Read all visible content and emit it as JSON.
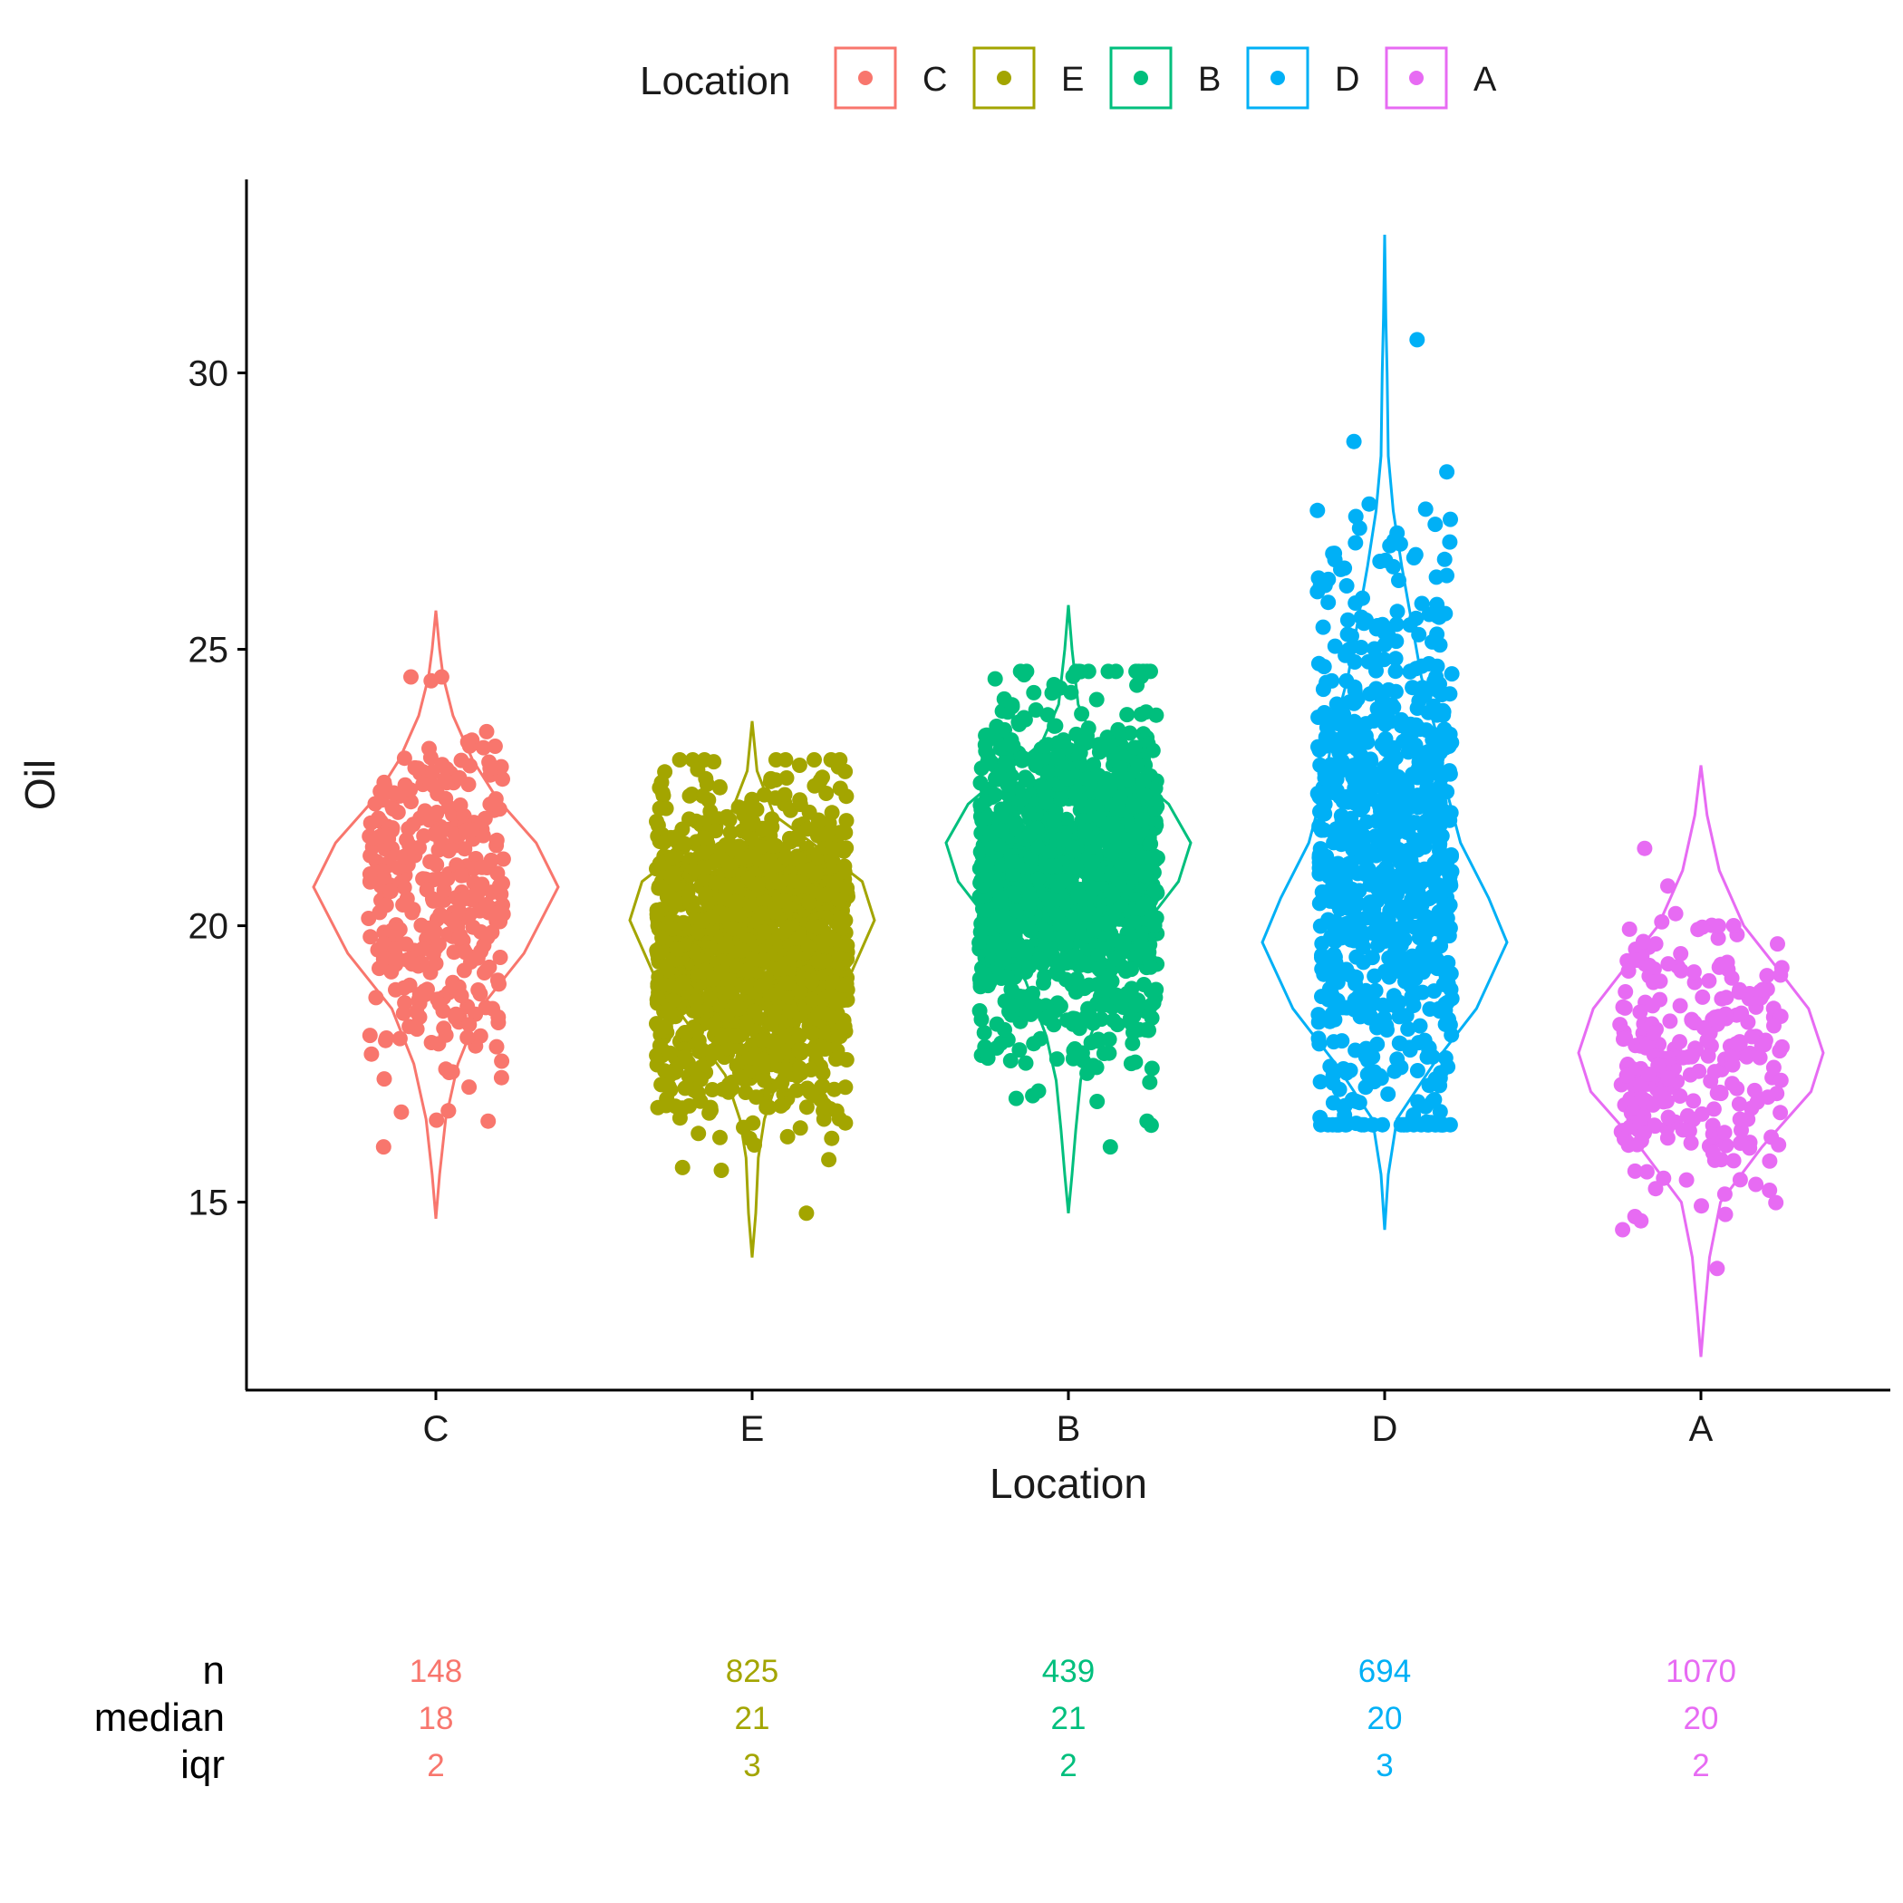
{
  "chart_data": {
    "type": "violin",
    "xlabel": "Location",
    "ylabel": "Oil",
    "ylim": [
      11.6,
      33.5
    ],
    "yticks": [
      15,
      20,
      25,
      30
    ],
    "grid": false,
    "legend": {
      "title": "Location",
      "position": "top",
      "entries": [
        "C",
        "E",
        "B",
        "D",
        "A"
      ]
    },
    "categories": [
      "C",
      "E",
      "B",
      "D",
      "A"
    ],
    "series": [
      {
        "name": "C",
        "color": "#F8766D",
        "range": [
          14.7,
          25.7
        ],
        "density": [
          [
            14.7,
            0.0
          ],
          [
            15.5,
            0.03
          ],
          [
            16.5,
            0.08
          ],
          [
            17.5,
            0.18
          ],
          [
            18.5,
            0.36
          ],
          [
            19.5,
            0.72
          ],
          [
            20.7,
            1.0
          ],
          [
            21.5,
            0.82
          ],
          [
            22.3,
            0.5
          ],
          [
            23.0,
            0.3
          ],
          [
            23.8,
            0.14
          ],
          [
            24.5,
            0.06
          ],
          [
            25.0,
            0.03
          ],
          [
            25.7,
            0.0
          ]
        ],
        "points": {
          "count": 340,
          "mean": 20.6,
          "sd": 1.6,
          "min": 16.0,
          "max": 24.5,
          "jitter": 0.62
        },
        "stats": {
          "n": "148",
          "median": "18",
          "iqr": "2"
        }
      },
      {
        "name": "E",
        "color": "#A3A500",
        "range": [
          14.0,
          23.7
        ],
        "density": [
          [
            14.0,
            0.0
          ],
          [
            14.8,
            0.03
          ],
          [
            15.8,
            0.05
          ],
          [
            16.5,
            0.1
          ],
          [
            17.3,
            0.22
          ],
          [
            18.0,
            0.45
          ],
          [
            19.0,
            0.78
          ],
          [
            20.1,
            1.0
          ],
          [
            20.8,
            0.9
          ],
          [
            21.4,
            0.55
          ],
          [
            22.0,
            0.18
          ],
          [
            22.8,
            0.04
          ],
          [
            23.7,
            0.0
          ]
        ],
        "points": {
          "count": 1400,
          "mean": 19.6,
          "sd": 1.4,
          "min": 14.8,
          "max": 23.0,
          "jitter": 0.88
        },
        "stats": {
          "n": "825",
          "median": "21",
          "iqr": "3"
        }
      },
      {
        "name": "B",
        "color": "#00BF7D",
        "range": [
          14.8,
          25.8
        ],
        "density": [
          [
            14.8,
            0.0
          ],
          [
            15.5,
            0.03
          ],
          [
            16.3,
            0.06
          ],
          [
            17.2,
            0.1
          ],
          [
            18.0,
            0.18
          ],
          [
            19.0,
            0.35
          ],
          [
            20.0,
            0.62
          ],
          [
            20.8,
            0.9
          ],
          [
            21.5,
            1.0
          ],
          [
            22.2,
            0.82
          ],
          [
            22.8,
            0.5
          ],
          [
            23.3,
            0.22
          ],
          [
            24.0,
            0.08
          ],
          [
            25.0,
            0.03
          ],
          [
            25.8,
            0.0
          ]
        ],
        "points": {
          "count": 1300,
          "mean": 20.9,
          "sd": 1.5,
          "min": 16.0,
          "max": 24.6,
          "jitter": 0.82
        },
        "stats": {
          "n": "439",
          "median": "21",
          "iqr": "2"
        }
      },
      {
        "name": "D",
        "color": "#00B0F6",
        "range": [
          14.5,
          32.5
        ],
        "density": [
          [
            14.5,
            0.0
          ],
          [
            15.5,
            0.03
          ],
          [
            16.5,
            0.1
          ],
          [
            17.5,
            0.4
          ],
          [
            18.5,
            0.75
          ],
          [
            19.7,
            1.0
          ],
          [
            20.5,
            0.85
          ],
          [
            21.5,
            0.62
          ],
          [
            22.5,
            0.5
          ],
          [
            23.5,
            0.42
          ],
          [
            24.5,
            0.3
          ],
          [
            25.5,
            0.22
          ],
          [
            26.5,
            0.14
          ],
          [
            27.5,
            0.07
          ],
          [
            28.5,
            0.03
          ],
          [
            30.0,
            0.02
          ],
          [
            31.0,
            0.01
          ],
          [
            32.5,
            0.0
          ]
        ],
        "points": {
          "count": 860,
          "mean": 21.3,
          "sd": 2.6,
          "min": 16.4,
          "max": 30.6,
          "jitter": 0.62
        },
        "stats": {
          "n": "694",
          "median": "20",
          "iqr": "3"
        }
      },
      {
        "name": "A",
        "color": "#E76BF3",
        "range": [
          12.2,
          22.9
        ],
        "density": [
          [
            12.2,
            0.0
          ],
          [
            13.0,
            0.03
          ],
          [
            14.0,
            0.07
          ],
          [
            15.0,
            0.16
          ],
          [
            16.0,
            0.5
          ],
          [
            17.0,
            0.9
          ],
          [
            17.7,
            1.0
          ],
          [
            18.5,
            0.88
          ],
          [
            19.3,
            0.6
          ],
          [
            20.0,
            0.35
          ],
          [
            21.0,
            0.15
          ],
          [
            22.0,
            0.05
          ],
          [
            22.9,
            0.0
          ]
        ],
        "points": {
          "count": 260,
          "mean": 17.6,
          "sd": 1.3,
          "min": 13.8,
          "max": 21.4,
          "jitter": 0.75
        },
        "stats": {
          "n": "1070",
          "median": "20",
          "iqr": "2"
        }
      }
    ],
    "stats_rows": [
      "n",
      "median",
      "iqr"
    ]
  }
}
